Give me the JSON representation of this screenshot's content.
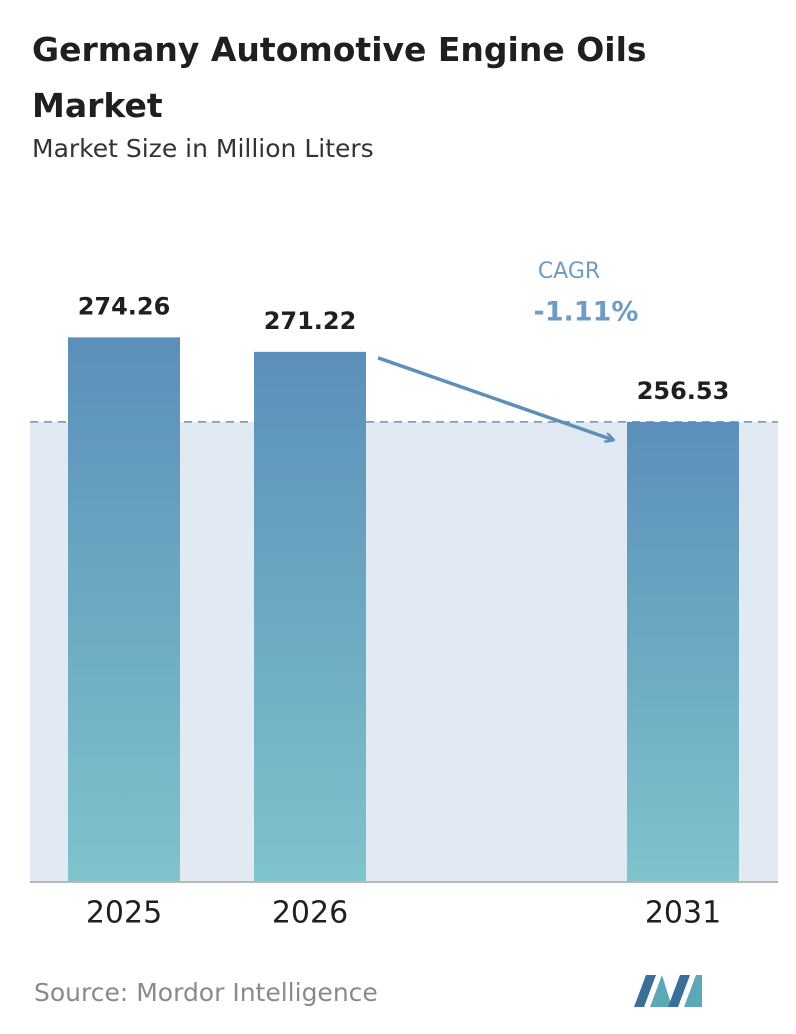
{
  "chart_data": {
    "type": "bar",
    "title": "Germany Automotive Engine Oils Market",
    "subtitle": "Market Size in Million Liters",
    "categories": [
      "2025",
      "2026",
      "2031"
    ],
    "values": [
      274.26,
      271.22,
      256.53
    ],
    "ylim": [
      160,
      280
    ],
    "annotations": {
      "cagr_label": "CAGR",
      "cagr_value": "-1.11%"
    },
    "source": "Source: Mordor Intelligence"
  }
}
